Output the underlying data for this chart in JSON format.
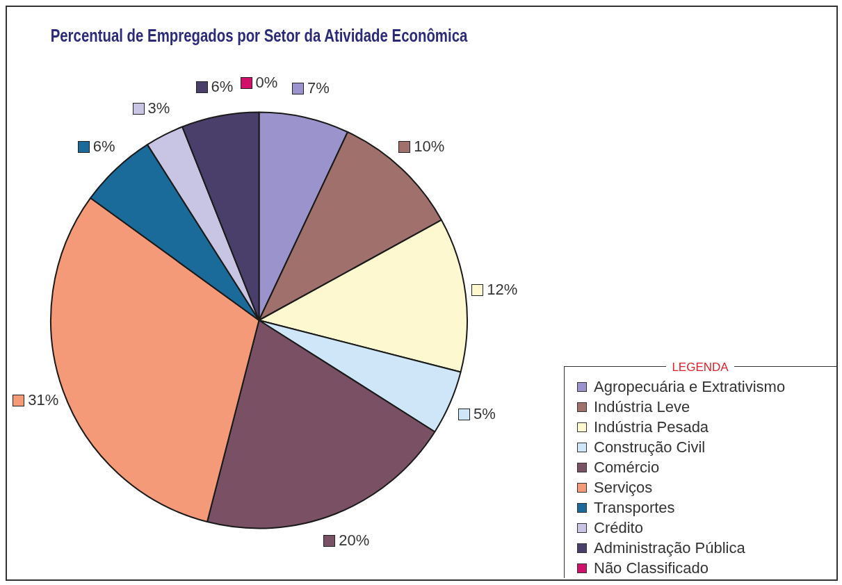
{
  "chart_data": {
    "type": "pie",
    "title": "Percentual de Empregados por Setor da Atividade Econômica",
    "legend_title": "LEGENDA",
    "legend": "bottom right",
    "categories": [
      "Agropecuária e Extrativismo",
      "Indústria Leve",
      "Indústria Pesada",
      "Construção Civil",
      "Comércio",
      "Serviços",
      "Transportes",
      "Crédito",
      "Administração Pública",
      "Não Classificado"
    ],
    "values": [
      7,
      10,
      12,
      5,
      20,
      31,
      6,
      3,
      6,
      0
    ],
    "value_labels": [
      "7%",
      "10%",
      "12%",
      "5%",
      "20%",
      "31%",
      "6%",
      "3%",
      "6%",
      "0%"
    ],
    "colors": [
      "#9b93cc",
      "#a0706c",
      "#fdf8d0",
      "#cfe6f8",
      "#7a5064",
      "#f49a78",
      "#1a6a9a",
      "#c8c4e4",
      "#4a3f6a",
      "#d0106a"
    ]
  }
}
